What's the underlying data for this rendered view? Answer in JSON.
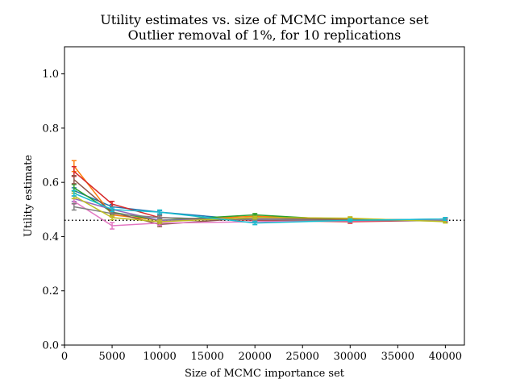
{
  "chart_data": {
    "type": "line",
    "title": "Utility estimates vs. size of MCMC importance set",
    "subtitle": "Outlier removal of 1%, for 10 replications",
    "xlabel": "Size of MCMC importance set",
    "ylabel": "Utility estimate",
    "xlim": [
      0,
      42000
    ],
    "ylim": [
      0.0,
      1.1
    ],
    "xticks": [
      0,
      5000,
      10000,
      15000,
      20000,
      25000,
      30000,
      35000,
      40000
    ],
    "xtick_labels": [
      "0",
      "5000",
      "10000",
      "15000",
      "20000",
      "25000",
      "30000",
      "35000",
      "40000"
    ],
    "yticks": [
      0.0,
      0.2,
      0.4,
      0.6,
      0.8,
      1.0
    ],
    "ytick_labels": [
      "0.0",
      "0.2",
      "0.4",
      "0.6",
      "0.8",
      "1.0"
    ],
    "x": [
      1000,
      5000,
      10000,
      20000,
      30000,
      40000
    ],
    "reference_line": {
      "y": 0.46,
      "style": "dotted",
      "color": "#000000"
    },
    "grid": false,
    "legend": "none",
    "series": [
      {
        "color": "#1f77b4",
        "values": [
          0.57,
          0.51,
          0.49,
          0.46,
          0.46,
          0.465
        ],
        "err": [
          0.01,
          0.008,
          0.006,
          0.005,
          0.005,
          0.005
        ]
      },
      {
        "color": "#ff7f0e",
        "values": [
          0.66,
          0.48,
          0.46,
          0.475,
          0.465,
          0.46
        ],
        "err": [
          0.02,
          0.008,
          0.006,
          0.005,
          0.005,
          0.005
        ]
      },
      {
        "color": "#2ca02c",
        "values": [
          0.58,
          0.49,
          0.46,
          0.48,
          0.46,
          0.46
        ],
        "err": [
          0.012,
          0.008,
          0.006,
          0.005,
          0.005,
          0.005
        ]
      },
      {
        "color": "#d62728",
        "values": [
          0.64,
          0.52,
          0.47,
          0.46,
          0.455,
          0.46
        ],
        "err": [
          0.018,
          0.01,
          0.008,
          0.005,
          0.006,
          0.005
        ]
      },
      {
        "color": "#9467bd",
        "values": [
          0.54,
          0.5,
          0.46,
          0.465,
          0.46,
          0.46
        ],
        "err": [
          0.01,
          0.008,
          0.006,
          0.005,
          0.005,
          0.005
        ]
      },
      {
        "color": "#8c564b",
        "values": [
          0.61,
          0.49,
          0.445,
          0.47,
          0.462,
          0.462
        ],
        "err": [
          0.015,
          0.008,
          0.008,
          0.005,
          0.005,
          0.005
        ]
      },
      {
        "color": "#e377c2",
        "values": [
          0.53,
          0.44,
          0.45,
          0.455,
          0.458,
          0.46
        ],
        "err": [
          0.01,
          0.012,
          0.008,
          0.005,
          0.005,
          0.005
        ]
      },
      {
        "color": "#7f7f7f",
        "values": [
          0.51,
          0.485,
          0.47,
          0.462,
          0.46,
          0.458
        ],
        "err": [
          0.012,
          0.008,
          0.006,
          0.005,
          0.005,
          0.005
        ]
      },
      {
        "color": "#bcbd22",
        "values": [
          0.55,
          0.47,
          0.455,
          0.47,
          0.468,
          0.455
        ],
        "err": [
          0.01,
          0.008,
          0.006,
          0.005,
          0.005,
          0.005
        ]
      },
      {
        "color": "#17becf",
        "values": [
          0.56,
          0.5,
          0.49,
          0.45,
          0.46,
          0.465
        ],
        "err": [
          0.01,
          0.008,
          0.008,
          0.006,
          0.005,
          0.005
        ]
      }
    ]
  }
}
